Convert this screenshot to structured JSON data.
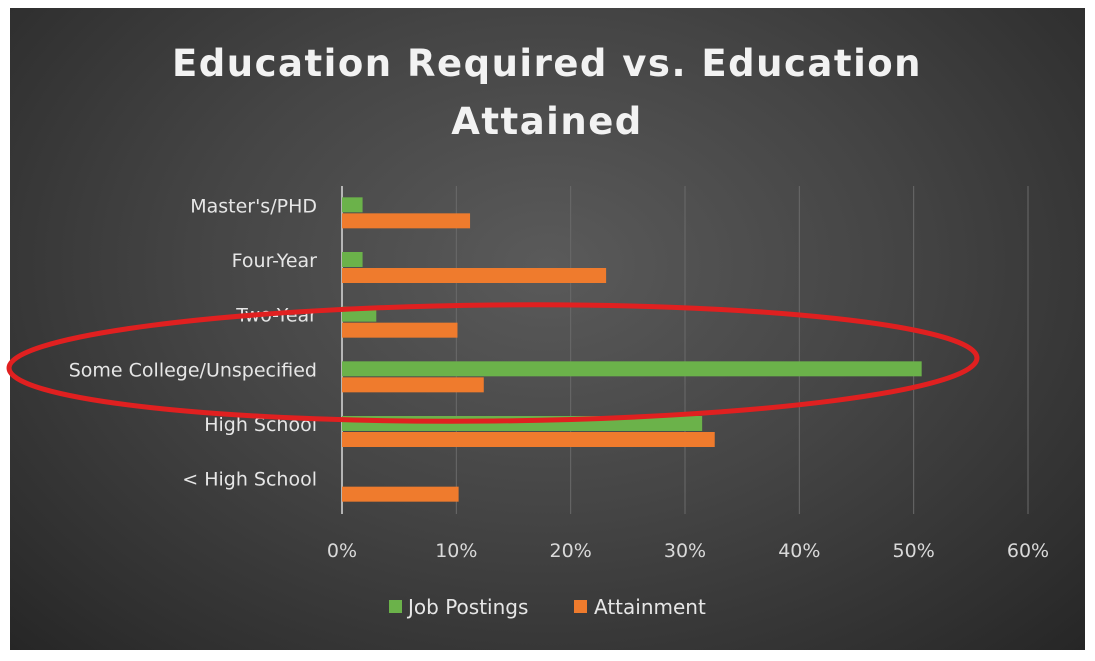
{
  "chart_data": {
    "type": "bar",
    "orientation": "horizontal",
    "title_lines": [
      "Education Required vs. Education",
      "Attained"
    ],
    "categories": [
      "Master's/PHD",
      "Four-Year",
      "Two-Year",
      "Some College/Unspecified",
      "High School",
      "< High School"
    ],
    "series": [
      {
        "name": "Job Postings",
        "color": "#6bb24a",
        "values": [
          0.018,
          0.018,
          0.03,
          0.507,
          0.315,
          0.0
        ]
      },
      {
        "name": "Attainment",
        "color": "#ef7b2d",
        "values": [
          0.112,
          0.231,
          0.101,
          0.124,
          0.326,
          0.102
        ]
      }
    ],
    "xlim": [
      0,
      0.6
    ],
    "x_ticks": [
      "0%",
      "10%",
      "20%",
      "30%",
      "40%",
      "50%",
      "60%"
    ],
    "grid": true,
    "legend_position": "bottom",
    "annotation": {
      "shape": "ellipse",
      "color": "#e02020",
      "encircles": [
        "Two-Year",
        "Some College/Unspecified"
      ]
    }
  }
}
